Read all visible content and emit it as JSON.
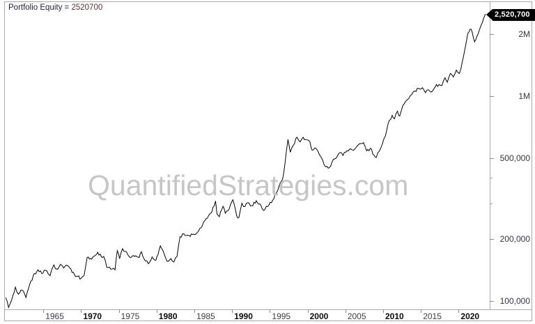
{
  "title": {
    "label": "Portfolio Equity =",
    "value": "2520700"
  },
  "badge": {
    "value": "2,520,700"
  },
  "watermark": "QuantifiedStrategies.com",
  "colors": {
    "line": "#000000",
    "watermark": "#c6c6c6",
    "border": "#a9a9a9",
    "badge_bg": "#000000",
    "badge_text": "#ffffff"
  },
  "chart_data": {
    "type": "line",
    "title": "Portfolio Equity",
    "final_equity": 2520700,
    "y_scale": "log",
    "legend": "none",
    "grid": "off",
    "x_axis": {
      "ticks": [
        1965,
        1970,
        1975,
        1980,
        1985,
        1990,
        1995,
        2000,
        2005,
        2010,
        2015,
        2020
      ],
      "bold_ticks": [
        1970,
        1980,
        1990,
        2000,
        2010,
        2020
      ],
      "range": [
        1960,
        2024.6
      ]
    },
    "y_axis": {
      "majors": [
        {
          "label": "2M",
          "value": 2000000
        },
        {
          "label": "1M",
          "value": 1000000
        },
        {
          "label": "500,000",
          "value": 500000
        },
        {
          "label": "200,000",
          "value": 200000
        },
        {
          "label": "100,000",
          "value": 100000
        }
      ],
      "minor_values": [
        400000,
        300000
      ],
      "range": [
        88000,
        2700000
      ]
    },
    "series": [
      {
        "name": "Portfolio Equity",
        "points": [
          [
            1960.0,
            104000
          ],
          [
            1960.4,
            93000
          ],
          [
            1960.8,
            101000
          ],
          [
            1961.3,
            117000
          ],
          [
            1961.7,
            108000
          ],
          [
            1962.2,
            113000
          ],
          [
            1962.7,
            104000
          ],
          [
            1963.2,
            121000
          ],
          [
            1963.8,
            136000
          ],
          [
            1964.3,
            142000
          ],
          [
            1964.8,
            136000
          ],
          [
            1965.3,
            141000
          ],
          [
            1965.9,
            133000
          ],
          [
            1966.4,
            150000
          ],
          [
            1966.8,
            143000
          ],
          [
            1967.3,
            151000
          ],
          [
            1967.7,
            145000
          ],
          [
            1968.2,
            149000
          ],
          [
            1968.8,
            138000
          ],
          [
            1969.4,
            132000
          ],
          [
            1970.0,
            129000
          ],
          [
            1970.4,
            133000
          ],
          [
            1970.8,
            163000
          ],
          [
            1971.4,
            160000
          ],
          [
            1971.9,
            167000
          ],
          [
            1972.2,
            173000
          ],
          [
            1972.7,
            164000
          ],
          [
            1973.0,
            165000
          ],
          [
            1973.4,
            146000
          ],
          [
            1974.1,
            143000
          ],
          [
            1974.5,
            142000
          ],
          [
            1974.8,
            176000
          ],
          [
            1975.1,
            161000
          ],
          [
            1975.5,
            180000
          ],
          [
            1976.0,
            174000
          ],
          [
            1976.4,
            164000
          ],
          [
            1977.1,
            165000
          ],
          [
            1977.7,
            163000
          ],
          [
            1978.0,
            174000
          ],
          [
            1978.5,
            157000
          ],
          [
            1978.9,
            152000
          ],
          [
            1979.4,
            164000
          ],
          [
            1979.9,
            158000
          ],
          [
            1980.5,
            186000
          ],
          [
            1981.0,
            170000
          ],
          [
            1981.4,
            156000
          ],
          [
            1981.9,
            161000
          ],
          [
            1982.3,
            155000
          ],
          [
            1982.7,
            165000
          ],
          [
            1983.1,
            206000
          ],
          [
            1983.6,
            213000
          ],
          [
            1984.3,
            209000
          ],
          [
            1984.9,
            212000
          ],
          [
            1985.4,
            216000
          ],
          [
            1985.9,
            228000
          ],
          [
            1986.4,
            247000
          ],
          [
            1986.9,
            262000
          ],
          [
            1987.3,
            271000
          ],
          [
            1987.8,
            308000
          ],
          [
            1988.0,
            266000
          ],
          [
            1988.3,
            258000
          ],
          [
            1988.8,
            290000
          ],
          [
            1989.1,
            268000
          ],
          [
            1989.6,
            281000
          ],
          [
            1990.1,
            312000
          ],
          [
            1990.6,
            261000
          ],
          [
            1990.9,
            256000
          ],
          [
            1991.3,
            300000
          ],
          [
            1991.7,
            289000
          ],
          [
            1992.1,
            302000
          ],
          [
            1992.6,
            292000
          ],
          [
            1993.2,
            309000
          ],
          [
            1993.8,
            294000
          ],
          [
            1994.2,
            277000
          ],
          [
            1994.7,
            289000
          ],
          [
            1995.2,
            302000
          ],
          [
            1995.7,
            332000
          ],
          [
            1996.2,
            362000
          ],
          [
            1996.7,
            395000
          ],
          [
            1997.0,
            470000
          ],
          [
            1997.4,
            615000
          ],
          [
            1997.7,
            532000
          ],
          [
            1998.1,
            575000
          ],
          [
            1998.6,
            630000
          ],
          [
            1999.0,
            598000
          ],
          [
            1999.4,
            630000
          ],
          [
            1999.9,
            612000
          ],
          [
            2000.3,
            598000
          ],
          [
            2000.6,
            545000
          ],
          [
            2001.1,
            556000
          ],
          [
            2001.5,
            524000
          ],
          [
            2002.0,
            486000
          ],
          [
            2002.4,
            452000
          ],
          [
            2002.9,
            448000
          ],
          [
            2003.4,
            492000
          ],
          [
            2003.9,
            507000
          ],
          [
            2004.3,
            531000
          ],
          [
            2004.7,
            514000
          ],
          [
            2005.2,
            541000
          ],
          [
            2005.7,
            553000
          ],
          [
            2006.1,
            544000
          ],
          [
            2006.6,
            573000
          ],
          [
            2007.1,
            586000
          ],
          [
            2007.4,
            593000
          ],
          [
            2007.8,
            541000
          ],
          [
            2008.3,
            556000
          ],
          [
            2008.8,
            515000
          ],
          [
            2009.1,
            502000
          ],
          [
            2009.5,
            540000
          ],
          [
            2009.9,
            585000
          ],
          [
            2010.3,
            640000
          ],
          [
            2010.8,
            760000
          ],
          [
            2011.2,
            805000
          ],
          [
            2011.5,
            775000
          ],
          [
            2011.9,
            845000
          ],
          [
            2012.2,
            800000
          ],
          [
            2012.6,
            900000
          ],
          [
            2013.0,
            945000
          ],
          [
            2013.4,
            975000
          ],
          [
            2013.8,
            1020000
          ],
          [
            2014.2,
            1060000
          ],
          [
            2014.7,
            1090000
          ],
          [
            2015.2,
            1100000
          ],
          [
            2015.6,
            1040000
          ],
          [
            2016.0,
            1075000
          ],
          [
            2016.5,
            1055000
          ],
          [
            2016.9,
            1110000
          ],
          [
            2017.4,
            1140000
          ],
          [
            2017.8,
            1130000
          ],
          [
            2018.2,
            1230000
          ],
          [
            2018.5,
            1170000
          ],
          [
            2018.9,
            1290000
          ],
          [
            2019.3,
            1240000
          ],
          [
            2019.7,
            1340000
          ],
          [
            2020.1,
            1290000
          ],
          [
            2020.5,
            1480000
          ],
          [
            2020.9,
            1750000
          ],
          [
            2021.2,
            2020000
          ],
          [
            2021.5,
            2120000
          ],
          [
            2021.8,
            2050000
          ],
          [
            2022.1,
            1840000
          ],
          [
            2022.4,
            1950000
          ],
          [
            2022.7,
            2080000
          ],
          [
            2023.0,
            2230000
          ],
          [
            2023.3,
            2400000
          ],
          [
            2023.55,
            2520700
          ]
        ]
      }
    ]
  }
}
